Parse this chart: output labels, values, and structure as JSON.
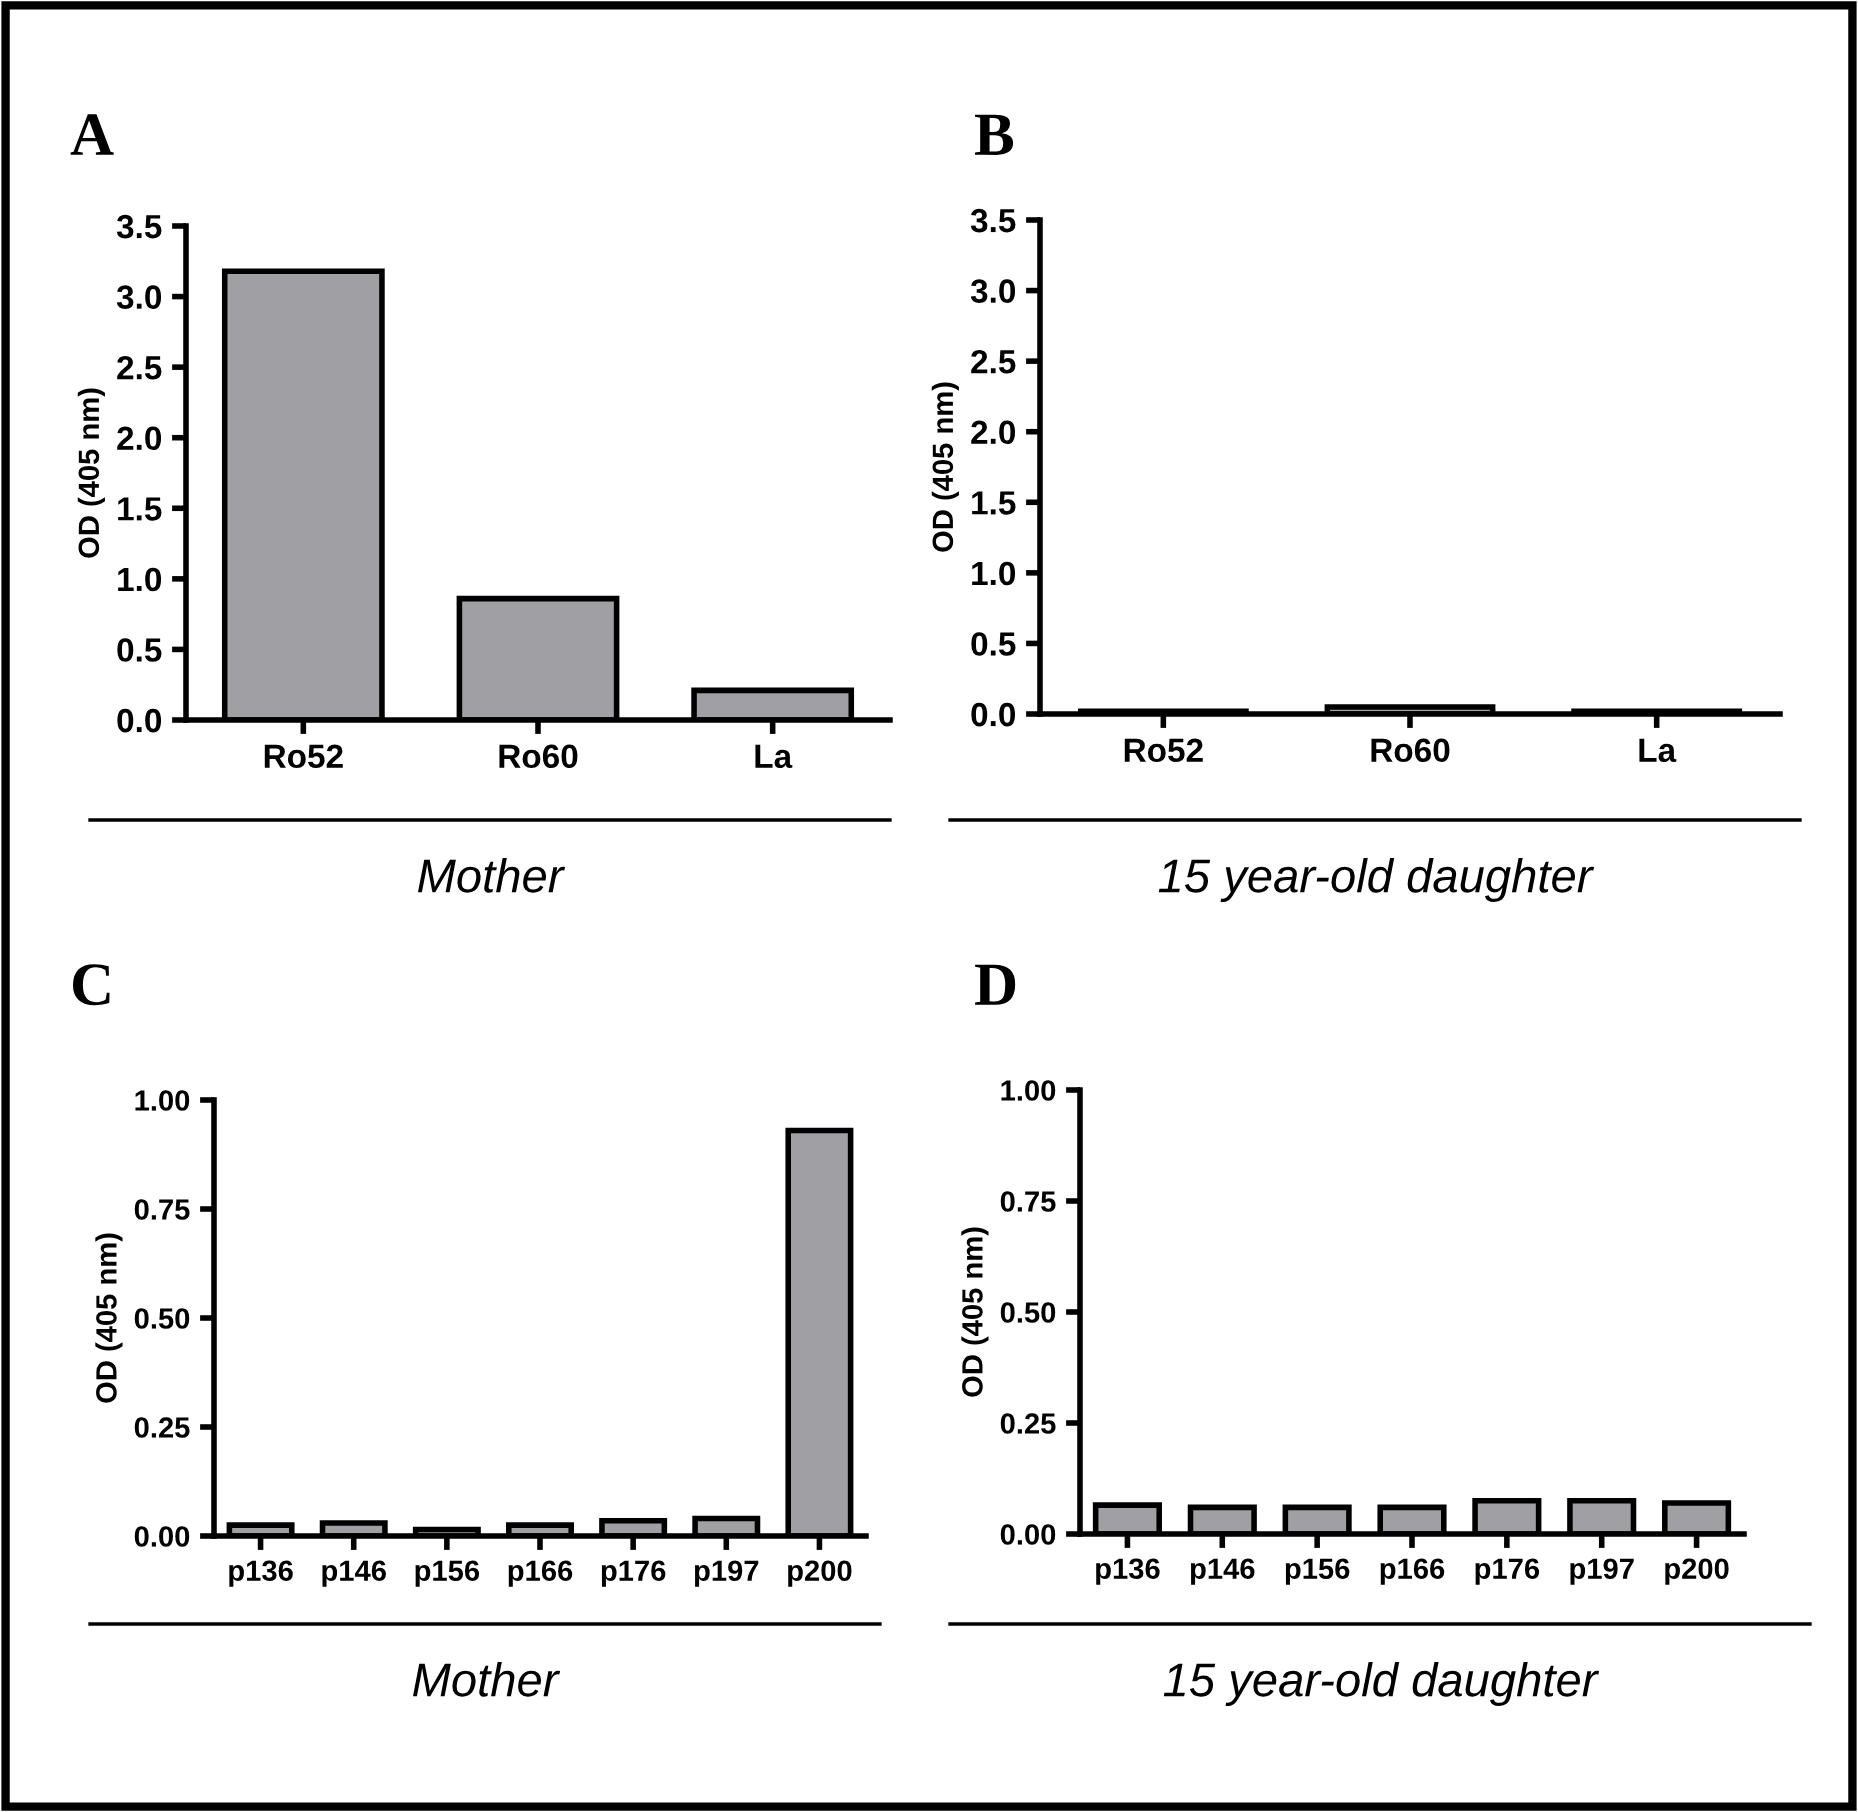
{
  "chart_data": [
    {
      "type": "bar",
      "title": "A",
      "ylabel": "OD (405 nm)",
      "xlabel": "Mother",
      "categories": [
        "Ro52",
        "Ro60",
        "La"
      ],
      "color": "#a0a0a4",
      "values": [
        3.18,
        0.86,
        0.21
      ],
      "ylim": [
        0,
        3.5
      ],
      "yticks": [
        {
          "value": 0,
          "label": "0.0"
        },
        {
          "value": 0.5,
          "label": "0.5"
        },
        {
          "value": 1,
          "label": "1.0"
        },
        {
          "value": 1.5,
          "label": "1.5"
        },
        {
          "value": 2,
          "label": "2.0"
        },
        {
          "value": 2.5,
          "label": "2.5"
        },
        {
          "value": 3,
          "label": "3.0"
        },
        {
          "value": 3.5,
          "label": "3.5"
        }
      ],
      "grid": false,
      "legend": false
    },
    {
      "type": "bar",
      "title": "B",
      "ylabel": "OD (405 nm)",
      "xlabel": "15 year-old daughter",
      "categories": [
        "Ro52",
        "Ro60",
        "La"
      ],
      "color": "#a0a0a4",
      "values": [
        0.02,
        0.05,
        0.02
      ],
      "ylim": [
        0,
        3.5
      ],
      "yticks": [
        {
          "value": 0,
          "label": "0.0"
        },
        {
          "value": 0.5,
          "label": "0.5"
        },
        {
          "value": 1,
          "label": "1.0"
        },
        {
          "value": 1.5,
          "label": "1.5"
        },
        {
          "value": 2,
          "label": "2.0"
        },
        {
          "value": 2.5,
          "label": "2.5"
        },
        {
          "value": 3,
          "label": "3.0"
        },
        {
          "value": 3.5,
          "label": "3.5"
        }
      ],
      "grid": false,
      "legend": false
    },
    {
      "type": "bar",
      "title": "C",
      "ylabel": "OD (405 nm)",
      "xlabel": "Mother",
      "categories": [
        "p136",
        "p146",
        "p156",
        "p166",
        "p176",
        "p197",
        "p200"
      ],
      "color": "#a0a0a4",
      "values": [
        0.025,
        0.03,
        0.015,
        0.025,
        0.035,
        0.04,
        0.93
      ],
      "ylim": [
        0,
        1
      ],
      "yticks": [
        {
          "value": 0,
          "label": "0.00"
        },
        {
          "value": 0.25,
          "label": "0.25"
        },
        {
          "value": 0.5,
          "label": "0.50"
        },
        {
          "value": 0.75,
          "label": "0.75"
        },
        {
          "value": 1,
          "label": "1.00"
        }
      ],
      "grid": false,
      "legend": false
    },
    {
      "type": "bar",
      "title": "D",
      "ylabel": "OD (405 nm)",
      "xlabel": "15 year-old daughter",
      "categories": [
        "p136",
        "p146",
        "p156",
        "p166",
        "p176",
        "p197",
        "p200"
      ],
      "color": "#a0a0a4",
      "values": [
        0.065,
        0.06,
        0.06,
        0.06,
        0.075,
        0.075,
        0.07
      ],
      "ylim": [
        0,
        1
      ],
      "yticks": [
        {
          "value": 0,
          "label": "0.00"
        },
        {
          "value": 0.25,
          "label": "0.25"
        },
        {
          "value": 0.5,
          "label": "0.50"
        },
        {
          "value": 0.75,
          "label": "0.75"
        },
        {
          "value": 1,
          "label": "1.00"
        }
      ],
      "grid": false,
      "legend": false
    }
  ]
}
